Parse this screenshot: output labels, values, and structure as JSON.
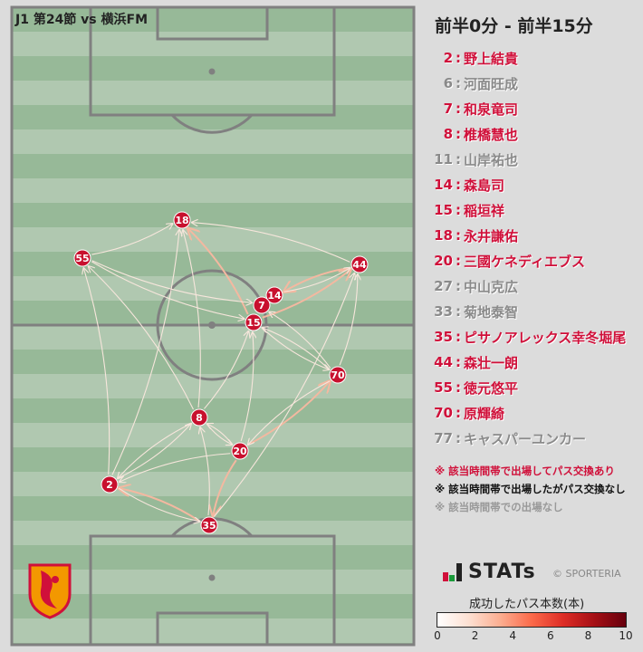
{
  "header": {
    "title": "J1 第24節 vs 横浜FM",
    "period": "前半0分 - 前半15分"
  },
  "colors": {
    "active": "#d0103a",
    "inactive": "#8a8a8a",
    "node": "#c8102e",
    "pitch_dark": "#97b998",
    "pitch_light": "#b0c8b0",
    "line": "#808080",
    "edge": "#f6cfc0"
  },
  "players": [
    {
      "num": "2",
      "name": "野上結貴",
      "active": true
    },
    {
      "num": "6",
      "name": "河面旺成",
      "active": false
    },
    {
      "num": "7",
      "name": "和泉竜司",
      "active": true
    },
    {
      "num": "8",
      "name": "椎橋慧也",
      "active": true
    },
    {
      "num": "11",
      "name": "山岸祐也",
      "active": false
    },
    {
      "num": "14",
      "name": "森島司",
      "active": true
    },
    {
      "num": "15",
      "name": "稲垣祥",
      "active": true
    },
    {
      "num": "18",
      "name": "永井謙佑",
      "active": true
    },
    {
      "num": "20",
      "name": "三國ケネディエブス",
      "active": true
    },
    {
      "num": "27",
      "name": "中山克広",
      "active": false
    },
    {
      "num": "33",
      "name": "菊地泰智",
      "active": false
    },
    {
      "num": "35",
      "name": "ピサノアレックス幸冬堀尾",
      "active": true
    },
    {
      "num": "44",
      "name": "森壮一朗",
      "active": true
    },
    {
      "num": "55",
      "name": "徳元悠平",
      "active": true
    },
    {
      "num": "70",
      "name": "原輝綺",
      "active": true
    },
    {
      "num": "77",
      "name": "キャスパーユンカー",
      "active": false
    }
  ],
  "sep": ":",
  "notes": [
    {
      "text": "※ 該当時間帯で出場してパス交換あり",
      "color": "#d0103a"
    },
    {
      "text": "※ 該当時間帯で出場したがパス交換なし",
      "color": "#111111"
    },
    {
      "text": "※ 該当時間帯での出場なし",
      "color": "#999999"
    }
  ],
  "brand": {
    "stats": "STATs",
    "copyright": "© SPORTERIA"
  },
  "colorbar": {
    "title": "成功したパス本数(本)",
    "ticks": [
      "0",
      "2",
      "4",
      "6",
      "8",
      "10"
    ],
    "range": [
      0,
      10
    ]
  },
  "network": {
    "nodes": [
      "18",
      "55",
      "44",
      "14",
      "7",
      "15",
      "70",
      "8",
      "20",
      "2",
      "35"
    ],
    "edges": [
      {
        "from": "15",
        "to": "18",
        "count": 2
      },
      {
        "from": "44",
        "to": "14",
        "count": 2
      },
      {
        "from": "15",
        "to": "44",
        "count": 2
      },
      {
        "from": "20",
        "to": "35",
        "count": 2
      },
      {
        "from": "35",
        "to": "2",
        "count": 2
      },
      {
        "from": "20",
        "to": "70",
        "count": 2
      },
      {
        "from": "44",
        "to": "18",
        "count": 1
      },
      {
        "from": "14",
        "to": "44",
        "count": 1
      },
      {
        "from": "55",
        "to": "18",
        "count": 1
      },
      {
        "from": "55",
        "to": "7",
        "count": 1
      },
      {
        "from": "55",
        "to": "15",
        "count": 1
      },
      {
        "from": "2",
        "to": "55",
        "count": 1
      },
      {
        "from": "8",
        "to": "55",
        "count": 1
      },
      {
        "from": "8",
        "to": "18",
        "count": 1
      },
      {
        "from": "2",
        "to": "18",
        "count": 1
      },
      {
        "from": "70",
        "to": "15",
        "count": 1
      },
      {
        "from": "70",
        "to": "7",
        "count": 1
      },
      {
        "from": "70",
        "to": "44",
        "count": 1
      },
      {
        "from": "15",
        "to": "70",
        "count": 1
      },
      {
        "from": "8",
        "to": "15",
        "count": 1
      },
      {
        "from": "20",
        "to": "15",
        "count": 1
      },
      {
        "from": "2",
        "to": "8",
        "count": 1
      },
      {
        "from": "8",
        "to": "2",
        "count": 1
      },
      {
        "from": "20",
        "to": "2",
        "count": 1
      },
      {
        "from": "20",
        "to": "8",
        "count": 1
      },
      {
        "from": "8",
        "to": "20",
        "count": 1
      },
      {
        "from": "35",
        "to": "44",
        "count": 1
      },
      {
        "from": "70",
        "to": "20",
        "count": 1
      },
      {
        "from": "35",
        "to": "8",
        "count": 1
      },
      {
        "from": "2",
        "to": "35",
        "count": 1
      }
    ]
  }
}
